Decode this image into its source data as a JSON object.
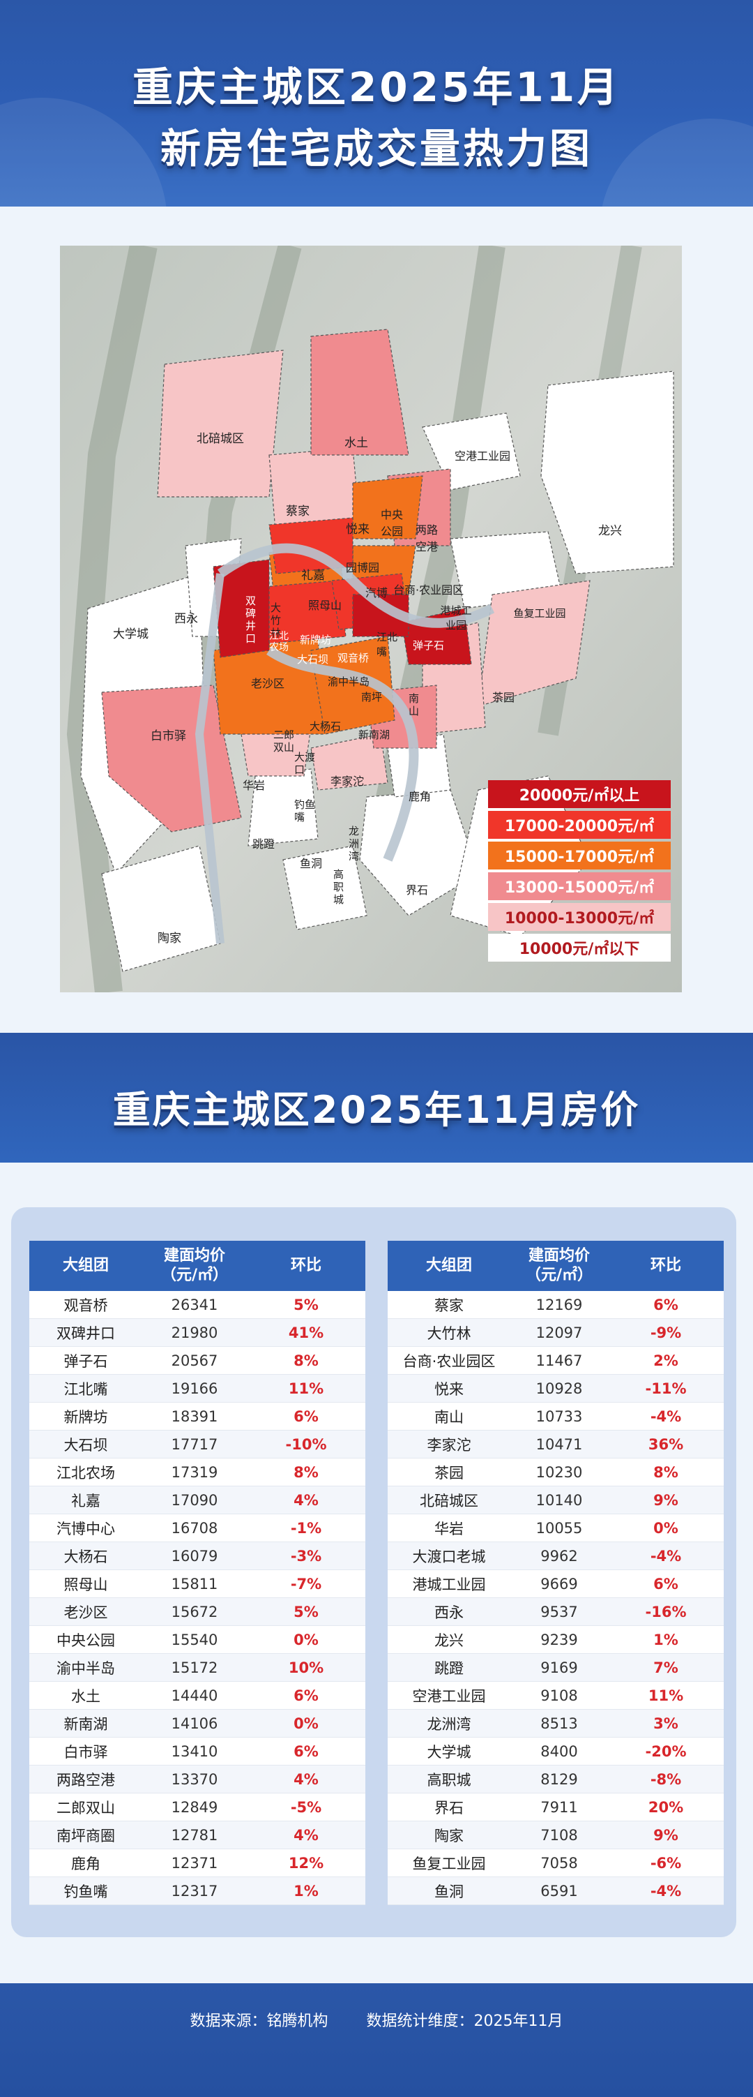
{
  "header": {
    "title_line1": "重庆主城区2025年11月",
    "title_line2": "新房住宅成交量热力图"
  },
  "map": {
    "labels": [
      {
        "id": "beibei",
        "text": "北碚城区"
      },
      {
        "id": "shuitu",
        "text": "水土"
      },
      {
        "id": "kongganggongye",
        "text": "空港工业园"
      },
      {
        "id": "longxing",
        "text": "龙兴"
      },
      {
        "id": "caijia",
        "text": "蔡家"
      },
      {
        "id": "yuelai",
        "text": "悦来"
      },
      {
        "id": "zhongyanggongyuan",
        "text": "中央公园"
      },
      {
        "id": "lianglukonggang",
        "text": "两路空港"
      },
      {
        "id": "lijia",
        "text": "礼嘉"
      },
      {
        "id": "qiboyuan",
        "text": "园博园"
      },
      {
        "id": "qibo",
        "text": "汽博"
      },
      {
        "id": "tainong",
        "text": "台商·农业园区"
      },
      {
        "id": "daxuecheng",
        "text": "大学城"
      },
      {
        "id": "xiyong",
        "text": "西永"
      },
      {
        "id": "shuangbei",
        "text": "双碑井口"
      },
      {
        "id": "dazhulin",
        "text": "大竹林"
      },
      {
        "id": "zhaomushan",
        "text": "照母山"
      },
      {
        "id": "ganggong",
        "text": "港城工业园"
      },
      {
        "id": "yufugongye",
        "text": "鱼复工业园"
      },
      {
        "id": "jiangbeinongchang",
        "text": "江北农场"
      },
      {
        "id": "xinpaifang",
        "text": "新牌坊"
      },
      {
        "id": "jiangbeizui",
        "text": "江北嘴"
      },
      {
        "id": "tanzishi",
        "text": "弹子石"
      },
      {
        "id": "dashiba",
        "text": "大石坝"
      },
      {
        "id": "guanyinqiao",
        "text": "观音桥"
      },
      {
        "id": "shapingba",
        "text": "老沙区"
      },
      {
        "id": "yuzhong",
        "text": "渝中半岛"
      },
      {
        "id": "nanping",
        "text": "南坪"
      },
      {
        "id": "nanshan",
        "text": "南山"
      },
      {
        "id": "chayuan",
        "text": "茶园"
      },
      {
        "id": "baishiyi",
        "text": "白市驿"
      },
      {
        "id": "erlang",
        "text": "二郎双山"
      },
      {
        "id": "dayangshi",
        "text": "大杨石"
      },
      {
        "id": "xinnanhu",
        "text": "新南湖"
      },
      {
        "id": "dadukou",
        "text": "大渡口"
      },
      {
        "id": "huayan",
        "text": "华岩"
      },
      {
        "id": "lijiatuo",
        "text": "李家沱"
      },
      {
        "id": "diaoyuzui",
        "text": "钓鱼嘴"
      },
      {
        "id": "lujiao",
        "text": "鹿角"
      },
      {
        "id": "tiaodeng",
        "text": "跳蹬"
      },
      {
        "id": "yudong",
        "text": "鱼洞"
      },
      {
        "id": "longzhouwan",
        "text": "龙洲湾"
      },
      {
        "id": "gaozhicheng",
        "text": "高职城"
      },
      {
        "id": "jieshi",
        "text": "界石"
      },
      {
        "id": "taojia",
        "text": "陶家"
      }
    ],
    "legend": [
      {
        "text": "20000元/㎡以上",
        "bg": "#c8141c",
        "fg": "#ffffff"
      },
      {
        "text": "17000-20000元/㎡",
        "bg": "#f0362a",
        "fg": "#ffffff"
      },
      {
        "text": "15000-17000元/㎡",
        "bg": "#f2721c",
        "fg": "#ffffff"
      },
      {
        "text": "13000-15000元/㎡",
        "bg": "#f08b8f",
        "fg": "#ffffff"
      },
      {
        "text": "10000-13000元/㎡",
        "bg": "#f7c5c6",
        "fg": "#b11a1f"
      },
      {
        "text": "10000元/㎡以下",
        "bg": "#ffffff",
        "fg": "#b11a1f"
      }
    ]
  },
  "prices_section": {
    "title": "重庆主城区2025年11月房价",
    "headers": {
      "group": "大组团",
      "price_line1": "建面均价",
      "price_line2": "（元/㎡）",
      "change": "环比"
    },
    "left_table": [
      {
        "name": "观音桥",
        "price": "26341",
        "change": "5%"
      },
      {
        "name": "双碑井口",
        "price": "21980",
        "change": "41%"
      },
      {
        "name": "弹子石",
        "price": "20567",
        "change": "8%"
      },
      {
        "name": "江北嘴",
        "price": "19166",
        "change": "11%"
      },
      {
        "name": "新牌坊",
        "price": "18391",
        "change": "6%"
      },
      {
        "name": "大石坝",
        "price": "17717",
        "change": "-10%"
      },
      {
        "name": "江北农场",
        "price": "17319",
        "change": "8%"
      },
      {
        "name": "礼嘉",
        "price": "17090",
        "change": "4%"
      },
      {
        "name": "汽博中心",
        "price": "16708",
        "change": "-1%"
      },
      {
        "name": "大杨石",
        "price": "16079",
        "change": "-3%"
      },
      {
        "name": "照母山",
        "price": "15811",
        "change": "-7%"
      },
      {
        "name": "老沙区",
        "price": "15672",
        "change": "5%"
      },
      {
        "name": "中央公园",
        "price": "15540",
        "change": "0%"
      },
      {
        "name": "渝中半岛",
        "price": "15172",
        "change": "10%"
      },
      {
        "name": "水土",
        "price": "14440",
        "change": "6%"
      },
      {
        "name": "新南湖",
        "price": "14106",
        "change": "0%"
      },
      {
        "name": "白市驿",
        "price": "13410",
        "change": "6%"
      },
      {
        "name": "两路空港",
        "price": "13370",
        "change": "4%"
      },
      {
        "name": "二郎双山",
        "price": "12849",
        "change": "-5%"
      },
      {
        "name": "南坪商圈",
        "price": "12781",
        "change": "4%"
      },
      {
        "name": "鹿角",
        "price": "12371",
        "change": "12%"
      },
      {
        "name": "钓鱼嘴",
        "price": "12317",
        "change": "1%"
      }
    ],
    "right_table": [
      {
        "name": "蔡家",
        "price": "12169",
        "change": "6%"
      },
      {
        "name": "大竹林",
        "price": "12097",
        "change": "-9%"
      },
      {
        "name": "台商·农业园区",
        "price": "11467",
        "change": "2%"
      },
      {
        "name": "悦来",
        "price": "10928",
        "change": "-11%"
      },
      {
        "name": "南山",
        "price": "10733",
        "change": "-4%"
      },
      {
        "name": "李家沱",
        "price": "10471",
        "change": "36%"
      },
      {
        "name": "茶园",
        "price": "10230",
        "change": "8%"
      },
      {
        "name": "北碚城区",
        "price": "10140",
        "change": "9%"
      },
      {
        "name": "华岩",
        "price": "10055",
        "change": "0%"
      },
      {
        "name": "大渡口老城",
        "price": "9962",
        "change": "-4%"
      },
      {
        "name": "港城工业园",
        "price": "9669",
        "change": "6%"
      },
      {
        "name": "西永",
        "price": "9537",
        "change": "-16%"
      },
      {
        "name": "龙兴",
        "price": "9239",
        "change": "1%"
      },
      {
        "name": "跳蹬",
        "price": "9169",
        "change": "7%"
      },
      {
        "name": "空港工业园",
        "price": "9108",
        "change": "11%"
      },
      {
        "name": "龙洲湾",
        "price": "8513",
        "change": "3%"
      },
      {
        "name": "大学城",
        "price": "8400",
        "change": "-20%"
      },
      {
        "name": "高职城",
        "price": "8129",
        "change": "-8%"
      },
      {
        "name": "界石",
        "price": "7911",
        "change": "20%"
      },
      {
        "name": "陶家",
        "price": "7108",
        "change": "9%"
      },
      {
        "name": "鱼复工业园",
        "price": "7058",
        "change": "-6%"
      },
      {
        "name": "鱼洞",
        "price": "6591",
        "change": "-4%"
      }
    ]
  },
  "footer": {
    "source": "数据来源：铭腾机构",
    "dimension": "数据统计维度：2025年11月"
  },
  "watermark": "铭腾机构"
}
